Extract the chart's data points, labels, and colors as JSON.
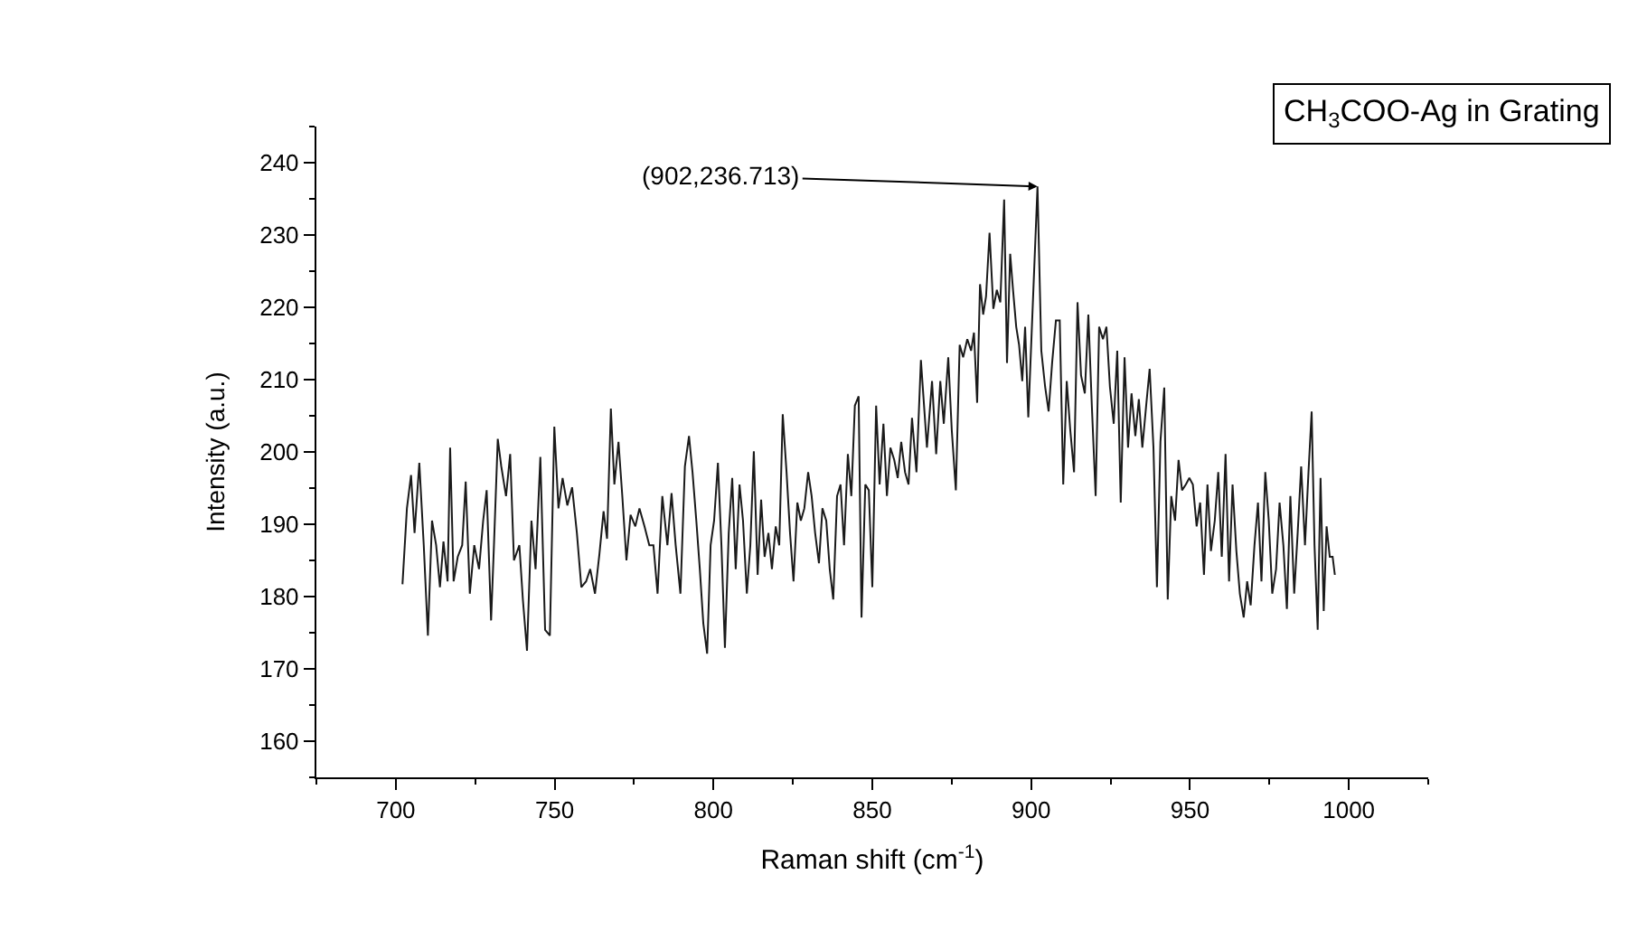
{
  "chart_data": {
    "type": "line",
    "xlabel": "Raman shift (cm$^{-1}$)",
    "ylabel": "Intensity (a.u.)",
    "annotations": [
      {
        "text": "(902,236.713)",
        "x": 902,
        "y": 236.713
      },
      "CH$_{3}$COO-Ag in Grating"
    ],
    "xlim": [
      675,
      1025
    ],
    "ylim": [
      155,
      245
    ],
    "xticks": [
      700,
      750,
      800,
      850,
      900,
      950,
      1000,
      {
        "value": 675,
        "label": null
      },
      {
        "value": 725,
        "label": null
      },
      {
        "value": 775,
        "label": null
      },
      {
        "value": 825,
        "label": null
      },
      {
        "value": 875,
        "label": null
      },
      {
        "value": 925,
        "label": null
      },
      {
        "value": 975,
        "label": null
      },
      {
        "value": 1025,
        "label": null
      }
    ],
    "yticks": [
      160,
      170,
      180,
      190,
      200,
      210,
      220,
      230,
      240,
      {
        "value": 155,
        "label": null
      },
      {
        "value": 165,
        "label": null
      },
      {
        "value": 175,
        "label": null
      },
      {
        "value": 185,
        "label": null
      },
      {
        "value": 195,
        "label": null
      },
      {
        "value": 205,
        "label": null
      },
      {
        "value": 215,
        "label": null
      },
      {
        "value": 225,
        "label": null
      },
      {
        "value": 235,
        "label": null
      },
      {
        "value": 245,
        "label": null
      }
    ],
    "marker": "none",
    "line_style": "solid",
    "series": [
      {
        "color": "#1a1a1a",
        "x": [
          702.1,
          703.5,
          704.8,
          705.9,
          707.4,
          708.8,
          710.1,
          711.4,
          712.7,
          713.9,
          715,
          716.3,
          717.1,
          718.2,
          719.5,
          720.9,
          722,
          723.3,
          724.7,
          726.2,
          727.5,
          728.6,
          730,
          730.9,
          732.1,
          733.2,
          734.7,
          736,
          737.2,
          738.9,
          740,
          741.3,
          742.7,
          744,
          745.5,
          747,
          748.5,
          749.9,
          751.2,
          752.5,
          754,
          755.5,
          757,
          758.4,
          759.9,
          761.2,
          762.7,
          764.1,
          765.4,
          766.5,
          767.7,
          768.8,
          770.1,
          771.3,
          772.6,
          773.9,
          775.4,
          776.7,
          778.3,
          779.8,
          781.1,
          782.4,
          783.9,
          785.5,
          786.8,
          788.1,
          789.6,
          791,
          792.3,
          793.4,
          794.6,
          795.7,
          796.8,
          798,
          799.1,
          800.2,
          801.4,
          802.5,
          803.6,
          804.8,
          805.9,
          807,
          808.2,
          809.3,
          810.5,
          811.6,
          812.7,
          813.9,
          815,
          816.1,
          817.3,
          818.4,
          819.6,
          820.7,
          821.8,
          823,
          824.1,
          825.2,
          826.4,
          827.5,
          828.6,
          829.8,
          830.9,
          832,
          833.2,
          834.3,
          835.5,
          836.6,
          837.7,
          838.9,
          840,
          841.1,
          842.3,
          843.4,
          844.5,
          845.7,
          846.6,
          847.8,
          848.9,
          850,
          851.2,
          852.3,
          853.5,
          854.6,
          855.7,
          856.9,
          858,
          859.1,
          860.3,
          861.4,
          862.5,
          863.9,
          865.3,
          867.2,
          868.8,
          870.1,
          871.4,
          872.5,
          873.9,
          875,
          876.3,
          877.5,
          878.6,
          879.9,
          881.1,
          882,
          883,
          883.9,
          884.9,
          885.8,
          886.9,
          888.1,
          889.2,
          890.3,
          891.5,
          892.4,
          893.4,
          894.3,
          895.3,
          896.2,
          897.2,
          898.1,
          899.1,
          902,
          903.2,
          904.4,
          905.5,
          906.6,
          907.8,
          909,
          910.1,
          911.2,
          912.3,
          913.5,
          914.6,
          915.7,
          916.9,
          918,
          919.1,
          920.3,
          921.4,
          922.6,
          923.7,
          924.8,
          926,
          927.1,
          928.2,
          929.4,
          930.5,
          931.6,
          932.8,
          933.9,
          935,
          936.2,
          937.3,
          938.5,
          939.6,
          940.7,
          941.9,
          943,
          944.1,
          945.3,
          946.4,
          947.5,
          948.7,
          949.8,
          950.9,
          952.1,
          953.2,
          954.4,
          955.5,
          956.6,
          957.8,
          958.9,
          960,
          961.2,
          962.3,
          963.4,
          964.6,
          965.7,
          966.9,
          968,
          969.1,
          970.3,
          971.4,
          972.5,
          973.7,
          974.8,
          975.9,
          977.1,
          978.2,
          979.4,
          980.5,
          981.6,
          982.8,
          983.9,
          985,
          986.2,
          987.3,
          988.3,
          989.2,
          990.2,
          991.1,
          992.1,
          993,
          994,
          994.9,
          995.6
        ],
        "values": [
          181.7,
          192.2,
          196.8,
          188.8,
          198.5,
          187.1,
          174.6,
          190.5,
          187.1,
          181.3,
          187.6,
          182.1,
          200.6,
          182.1,
          185.5,
          187.1,
          195.9,
          180.4,
          187.1,
          183.8,
          190.5,
          194.7,
          176.7,
          187.1,
          201.8,
          198,
          193.9,
          199.7,
          185,
          187.1,
          179.6,
          172.5,
          190.5,
          183.8,
          199.3,
          175.4,
          174.6,
          203.5,
          192.2,
          196.4,
          192.6,
          195.1,
          188.8,
          181.3,
          182.1,
          183.8,
          180.4,
          185.9,
          191.8,
          188,
          206,
          195.5,
          201.4,
          193.9,
          185,
          191.3,
          189.7,
          192.2,
          189.7,
          187.1,
          187.1,
          180.4,
          193.9,
          187.1,
          194.3,
          187.1,
          180.4,
          198,
          202.2,
          197.2,
          190.5,
          183.8,
          176.3,
          172.1,
          187.1,
          190.5,
          198.5,
          187.1,
          172.9,
          188.8,
          196.4,
          183.8,
          195.5,
          190.5,
          180.4,
          187.1,
          200.1,
          183,
          193.4,
          185.5,
          188.8,
          183.8,
          189.7,
          187.1,
          205.2,
          197.2,
          188.8,
          182.1,
          193,
          190.5,
          192.2,
          197.2,
          193.9,
          188.8,
          184.6,
          192.2,
          190.5,
          183.8,
          179.6,
          193.9,
          195.5,
          187.1,
          199.7,
          193.9,
          206.4,
          207.7,
          177.1,
          195.5,
          194.7,
          181.3,
          206.4,
          195.5,
          203.9,
          193.9,
          200.6,
          198.9,
          196.4,
          201.4,
          197.2,
          195.5,
          204.7,
          197.2,
          212.7,
          200.6,
          209.8,
          199.7,
          209.8,
          203.9,
          213.1,
          203.1,
          194.7,
          214.8,
          213.1,
          215.6,
          214,
          216.5,
          206.8,
          223.2,
          219,
          221.5,
          230.3,
          219.8,
          222.4,
          220.7,
          234.9,
          212.3,
          227.4,
          222.4,
          217.3,
          214.8,
          209.8,
          217.3,
          204.8,
          236.713,
          214,
          209,
          205.6,
          212.3,
          218.2,
          218.2,
          195.5,
          209.8,
          203.1,
          197.2,
          220.7,
          210.6,
          208.1,
          219,
          206.4,
          193.9,
          217.3,
          215.6,
          217.3,
          209,
          203.9,
          214,
          193,
          213.1,
          200.6,
          208.1,
          202.2,
          207.3,
          200.6,
          206.4,
          211.5,
          200.6,
          181.3,
          201.4,
          208.9,
          179.6,
          193.9,
          190.5,
          198.9,
          194.7,
          195.5,
          196.4,
          195.5,
          189.7,
          193,
          183,
          195.5,
          186.3,
          190.5,
          197.2,
          185.5,
          199.7,
          182.1,
          195.5,
          186.3,
          180.4,
          177.1,
          182.1,
          178.8,
          187.1,
          193,
          182.1,
          197.2,
          190.5,
          180.4,
          183.8,
          193,
          187.1,
          178.3,
          193.9,
          180.4,
          188.8,
          198,
          187.1,
          197.2,
          205.6,
          187.1,
          175.4,
          196.4,
          178,
          189.7,
          185.5,
          185.5,
          183
        ]
      }
    ]
  }
}
